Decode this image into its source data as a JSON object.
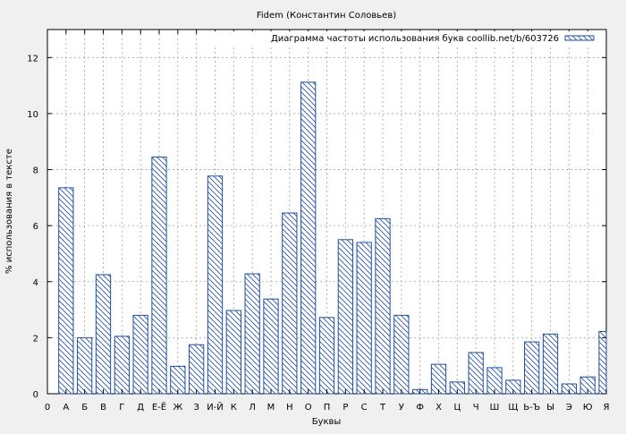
{
  "chart_data": {
    "type": "bar",
    "title": "Fidem (Константин Соловьев)",
    "xlabel": "Буквы",
    "ylabel": "% использования в тексте",
    "ylim": [
      0,
      13
    ],
    "yticks": [
      0,
      2,
      4,
      6,
      8,
      10,
      12
    ],
    "x_first_tick": "0",
    "grid": true,
    "legend_position": "top-right",
    "bar_color": "#1f4e9e",
    "bar_pattern": "diagonal-hatch",
    "categories": [
      "А",
      "Б",
      "В",
      "Г",
      "Д",
      "Е-Ё",
      "Ж",
      "З",
      "И-Й",
      "К",
      "Л",
      "М",
      "Н",
      "О",
      "П",
      "Р",
      "С",
      "Т",
      "У",
      "Ф",
      "Х",
      "Ц",
      "Ч",
      "Ш",
      "Щ",
      "Ь-Ъ",
      "Ы",
      "Э",
      "Ю",
      "Я"
    ],
    "series": [
      {
        "name": "Диаграмма частоты использования букв coollib.net/b/603726",
        "values": [
          7.35,
          2.0,
          4.25,
          2.05,
          2.8,
          8.45,
          0.98,
          1.75,
          7.77,
          2.97,
          4.28,
          3.38,
          6.45,
          11.12,
          2.72,
          5.5,
          5.4,
          6.25,
          2.8,
          0.15,
          1.05,
          0.42,
          1.47,
          0.93,
          0.48,
          1.85,
          2.13,
          0.35,
          0.6,
          2.22
        ]
      }
    ]
  }
}
